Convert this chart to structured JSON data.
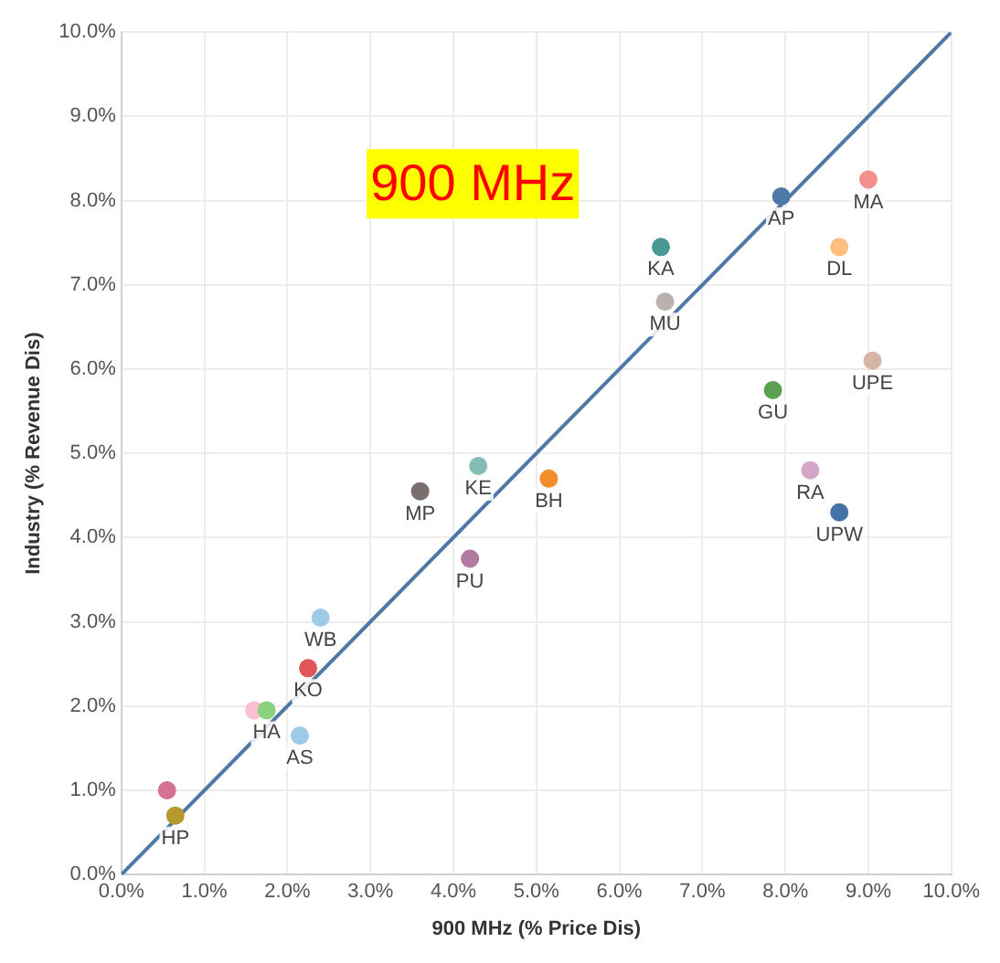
{
  "chart_data": {
    "type": "scatter",
    "title": "900 MHz",
    "xlabel": "900 MHz (% Price Dis)",
    "ylabel": "Industry (% Revenue Dis)",
    "xlim": [
      0,
      10
    ],
    "ylim": [
      0,
      10
    ],
    "xticks": [
      {
        "value": 0,
        "label": "0.0%"
      },
      {
        "value": 1,
        "label": "1.0%"
      },
      {
        "value": 2,
        "label": "2.0%"
      },
      {
        "value": 3,
        "label": "3.0%"
      },
      {
        "value": 4,
        "label": "4.0%"
      },
      {
        "value": 5,
        "label": "5.0%"
      },
      {
        "value": 6,
        "label": "6.0%"
      },
      {
        "value": 7,
        "label": "7.0%"
      },
      {
        "value": 8,
        "label": "8.0%"
      },
      {
        "value": 9,
        "label": "9.0%"
      },
      {
        "value": 10,
        "label": "10.0%"
      }
    ],
    "yticks": [
      {
        "value": 0,
        "label": "0.0%"
      },
      {
        "value": 1,
        "label": "1.0%"
      },
      {
        "value": 2,
        "label": "2.0%"
      },
      {
        "value": 3,
        "label": "3.0%"
      },
      {
        "value": 4,
        "label": "4.0%"
      },
      {
        "value": 5,
        "label": "5.0%"
      },
      {
        "value": 6,
        "label": "6.0%"
      },
      {
        "value": 7,
        "label": "7.0%"
      },
      {
        "value": 8,
        "label": "8.0%"
      },
      {
        "value": 9,
        "label": "9.0%"
      },
      {
        "value": 10,
        "label": "10.0%"
      }
    ],
    "grid": true,
    "legend": false,
    "marker": "circle",
    "series": [
      {
        "type": "scatter",
        "x": [
          9.0,
          7.95,
          8.65,
          6.5,
          6.55,
          9.05,
          7.85,
          4.3,
          5.15,
          3.6,
          8.3,
          8.65,
          4.2,
          2.4,
          2.25,
          1.6,
          1.75,
          2.15,
          0.55,
          0.65
        ],
        "values": [
          8.25,
          8.05,
          7.45,
          7.45,
          6.8,
          6.1,
          5.75,
          4.85,
          4.7,
          4.55,
          4.8,
          4.3,
          3.75,
          3.05,
          2.45,
          1.95,
          1.95,
          1.65,
          1.0,
          0.7
        ],
        "colors": [
          "#f28e8c",
          "#4e79a7",
          "#ffbe7d",
          "#499894",
          "#bab0ac",
          "#d7b5a6",
          "#59a14f",
          "#86bcb6",
          "#f28e2b",
          "#79706e",
          "#d4a6c8",
          "#4472a4",
          "#b07aa1",
          "#a0cbe8",
          "#e15759",
          "#fabfd2",
          "#8cd17d",
          "#a0cbe8",
          "#d37295",
          "#b6992d"
        ]
      },
      {
        "type": "line",
        "x": [
          0,
          10
        ],
        "values": [
          0,
          10
        ],
        "color": "#4e79a7",
        "line_style": "solid",
        "marker": "none"
      }
    ],
    "annotations": [
      {
        "text": "MA",
        "x": 9.0,
        "y": 8.25
      },
      {
        "text": "AP",
        "x": 7.95,
        "y": 8.05
      },
      {
        "text": "DL",
        "x": 8.65,
        "y": 7.45
      },
      {
        "text": "KA",
        "x": 6.5,
        "y": 7.45
      },
      {
        "text": "MU",
        "x": 6.55,
        "y": 6.8
      },
      {
        "text": "UPE",
        "x": 9.05,
        "y": 6.1
      },
      {
        "text": "GU",
        "x": 7.85,
        "y": 5.75
      },
      {
        "text": "KE",
        "x": 4.3,
        "y": 4.85
      },
      {
        "text": "BH",
        "x": 5.15,
        "y": 4.7
      },
      {
        "text": "MP",
        "x": 3.6,
        "y": 4.55
      },
      {
        "text": "RA",
        "x": 8.3,
        "y": 4.8
      },
      {
        "text": "UPW",
        "x": 8.65,
        "y": 4.3
      },
      {
        "text": "PU",
        "x": 4.2,
        "y": 3.75
      },
      {
        "text": "WB",
        "x": 2.4,
        "y": 3.05
      },
      {
        "text": "KO",
        "x": 2.25,
        "y": 2.45
      },
      {
        "text": "HA",
        "x": 1.75,
        "y": 1.95
      },
      {
        "text": "AS",
        "x": 2.15,
        "y": 1.65
      },
      {
        "text": "HP",
        "x": 0.65,
        "y": 0.7
      }
    ]
  }
}
